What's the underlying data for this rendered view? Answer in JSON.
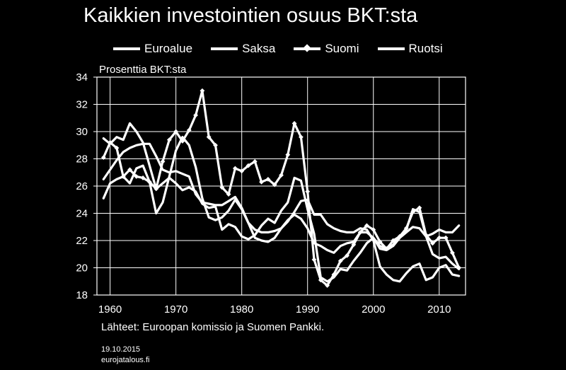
{
  "chart_data": {
    "type": "line",
    "title": "Kaikkien investointien osuus BKT:sta",
    "ylabel": "Prosenttia BKT:sta",
    "xlabel": "",
    "xlim": [
      1958,
      2014
    ],
    "ylim": [
      18,
      34
    ],
    "x_ticks": [
      1960,
      1970,
      1980,
      1990,
      2000,
      2010
    ],
    "y_ticks": [
      18,
      20,
      22,
      24,
      26,
      28,
      30,
      32,
      34
    ],
    "grid": true,
    "legend_position": "top",
    "x": [
      1959,
      1960,
      1961,
      1962,
      1963,
      1964,
      1965,
      1966,
      1967,
      1968,
      1969,
      1970,
      1971,
      1972,
      1973,
      1974,
      1975,
      1976,
      1977,
      1978,
      1979,
      1980,
      1981,
      1982,
      1983,
      1984,
      1985,
      1986,
      1987,
      1988,
      1989,
      1990,
      1991,
      1992,
      1993,
      1994,
      1995,
      1996,
      1997,
      1998,
      1999,
      2000,
      2001,
      2002,
      2003,
      2004,
      2005,
      2006,
      2007,
      2008,
      2009,
      2010,
      2011,
      2012,
      2013
    ],
    "series": [
      {
        "name": "Euroalue",
        "marker": false,
        "values": [
          26.5,
          27.2,
          27.9,
          28.5,
          28.8,
          29.0,
          29.1,
          29.1,
          28.2,
          27.2,
          27.0,
          27.1,
          26.9,
          26.7,
          25.4,
          24.8,
          24.7,
          24.6,
          24.6,
          24.9,
          25.2,
          24.4,
          23.3,
          22.8,
          22.6,
          22.6,
          22.7,
          22.9,
          23.5,
          23.9,
          23.6,
          22.9,
          21.8,
          21.6,
          21.3,
          21.1,
          21.6,
          21.8,
          21.9,
          22.6,
          22.6,
          22.2,
          21.4,
          21.3,
          21.6,
          22.2,
          22.6,
          23.0,
          22.9,
          22.3,
          21.0,
          20.7,
          20.8,
          20.3,
          19.9
        ]
      },
      {
        "name": "Saksa",
        "marker": false,
        "values": [
          25.1,
          26.2,
          26.5,
          26.7,
          26.2,
          27.3,
          27.5,
          26.3,
          24.0,
          24.8,
          26.7,
          28.6,
          29.6,
          29.0,
          27.4,
          25.1,
          23.7,
          23.5,
          23.7,
          24.2,
          25.0,
          24.3,
          23.3,
          22.2,
          22.0,
          21.9,
          22.2,
          22.9,
          23.4,
          24.1,
          24.9,
          25.0,
          23.9,
          23.9,
          23.2,
          22.9,
          22.7,
          22.6,
          22.6,
          22.9,
          22.8,
          22.0,
          20.1,
          19.5,
          19.1,
          19.0,
          19.6,
          20.1,
          20.3,
          19.1,
          19.3,
          20.0,
          20.2,
          19.5,
          19.4
        ]
      },
      {
        "name": "Suomi",
        "marker": true,
        "values": [
          28.1,
          29.2,
          28.8,
          26.7,
          27.2,
          26.7,
          26.6,
          26.3,
          25.8,
          27.8,
          29.4,
          30.0,
          29.3,
          30.1,
          31.2,
          33.0,
          29.6,
          29.0,
          25.9,
          25.4,
          27.3,
          27.1,
          27.5,
          27.8,
          26.3,
          26.5,
          26.1,
          26.8,
          28.3,
          30.6,
          29.6,
          25.6,
          20.6,
          19.1,
          18.7,
          19.5,
          20.5,
          20.9,
          21.7,
          22.6,
          23.1,
          22.8,
          21.9,
          21.4,
          22.0,
          22.3,
          22.9,
          24.1,
          24.4,
          22.4,
          21.8,
          22.2,
          22.2,
          21.1,
          20.0
        ]
      },
      {
        "name": "Ruotsi",
        "marker": false,
        "values": [
          29.5,
          29.1,
          29.6,
          29.4,
          30.6,
          30.0,
          29.2,
          27.5,
          25.8,
          26.2,
          26.6,
          26.2,
          25.7,
          25.9,
          25.6,
          24.7,
          24.4,
          24.5,
          22.8,
          23.2,
          23.0,
          22.3,
          22.1,
          22.4,
          23.1,
          23.6,
          23.3,
          24.2,
          24.8,
          26.6,
          26.4,
          24.3,
          22.5,
          19.3,
          19.0,
          19.3,
          19.9,
          19.8,
          20.5,
          21.1,
          21.8,
          22.2,
          21.6,
          21.4,
          21.7,
          22.3,
          22.8,
          24.3,
          24.1,
          22.3,
          22.5,
          22.8,
          22.6,
          22.6,
          23.1
        ]
      }
    ]
  },
  "legend": {
    "items": [
      "Euroalue",
      "Saksa",
      "Suomi",
      "Ruotsi"
    ]
  },
  "footer": {
    "source": "Lähteet: Euroopan komissio ja Suomen Pankki.",
    "date": "19.10.2015",
    "site": "eurojatalous.fi"
  },
  "colors": {
    "background": "#000000",
    "line": "#ffffff"
  }
}
